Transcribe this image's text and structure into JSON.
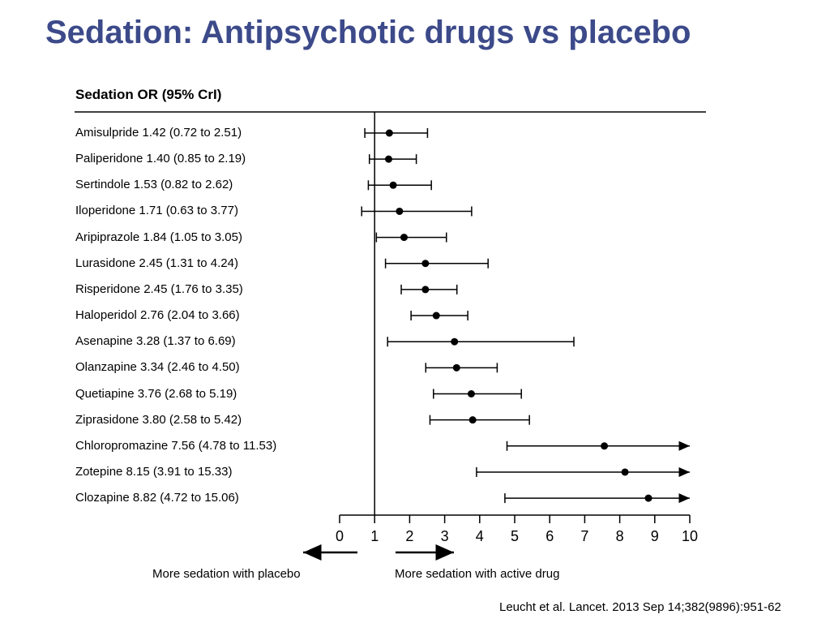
{
  "title": "Sedation: Antipsychotic drugs vs placebo",
  "column_header": "Sedation OR (95% CrI)",
  "direction_labels": {
    "left": "More sedation with placebo",
    "right": "More sedation with active drug"
  },
  "citation": "Leucht et al. Lancet. 2013 Sep 14;382(9896):951-62",
  "colors": {
    "title": "#3c4a8a",
    "marks": "#000000"
  },
  "chart_data": {
    "type": "forest",
    "reference_line": 1,
    "xlim": [
      0,
      10
    ],
    "x_ticks": [
      "0",
      "1",
      "2",
      "3",
      "4",
      "5",
      "6",
      "7",
      "8",
      "9",
      "10"
    ],
    "rows": [
      {
        "label": "Amisulpride 1.42 (0.72 to 2.51)",
        "estimate": 1.42,
        "lower": 0.72,
        "upper": 2.51
      },
      {
        "label": "Paliperidone 1.40 (0.85 to 2.19)",
        "estimate": 1.4,
        "lower": 0.85,
        "upper": 2.19
      },
      {
        "label": "Sertindole 1.53 (0.82 to 2.62)",
        "estimate": 1.53,
        "lower": 0.82,
        "upper": 2.62
      },
      {
        "label": "Iloperidone 1.71 (0.63 to 3.77)",
        "estimate": 1.71,
        "lower": 0.63,
        "upper": 3.77
      },
      {
        "label": "Aripiprazole 1.84 (1.05 to 3.05)",
        "estimate": 1.84,
        "lower": 1.05,
        "upper": 3.05
      },
      {
        "label": "Lurasidone 2.45 (1.31 to 4.24)",
        "estimate": 2.45,
        "lower": 1.31,
        "upper": 4.24
      },
      {
        "label": "Risperidone 2.45 (1.76 to 3.35)",
        "estimate": 2.45,
        "lower": 1.76,
        "upper": 3.35
      },
      {
        "label": "Haloperidol 2.76 (2.04 to 3.66)",
        "estimate": 2.76,
        "lower": 2.04,
        "upper": 3.66
      },
      {
        "label": "Asenapine 3.28 (1.37 to 6.69)",
        "estimate": 3.28,
        "lower": 1.37,
        "upper": 6.69
      },
      {
        "label": "Olanzapine 3.34 (2.46 to 4.50)",
        "estimate": 3.34,
        "lower": 2.46,
        "upper": 4.5
      },
      {
        "label": "Quetiapine 3.76 (2.68 to 5.19)",
        "estimate": 3.76,
        "lower": 2.68,
        "upper": 5.19
      },
      {
        "label": "Ziprasidone 3.80 (2.58 to 5.42)",
        "estimate": 3.8,
        "lower": 2.58,
        "upper": 5.42
      },
      {
        "label": "Chloropromazine 7.56 (4.78 to 11.53)",
        "estimate": 7.56,
        "lower": 4.78,
        "upper": 11.53
      },
      {
        "label": "Zotepine 8.15 (3.91 to 15.33)",
        "estimate": 8.15,
        "lower": 3.91,
        "upper": 15.33
      },
      {
        "label": "Clozapine 8.82 (4.72 to 15.06)",
        "estimate": 8.82,
        "lower": 4.72,
        "upper": 15.06
      }
    ]
  }
}
